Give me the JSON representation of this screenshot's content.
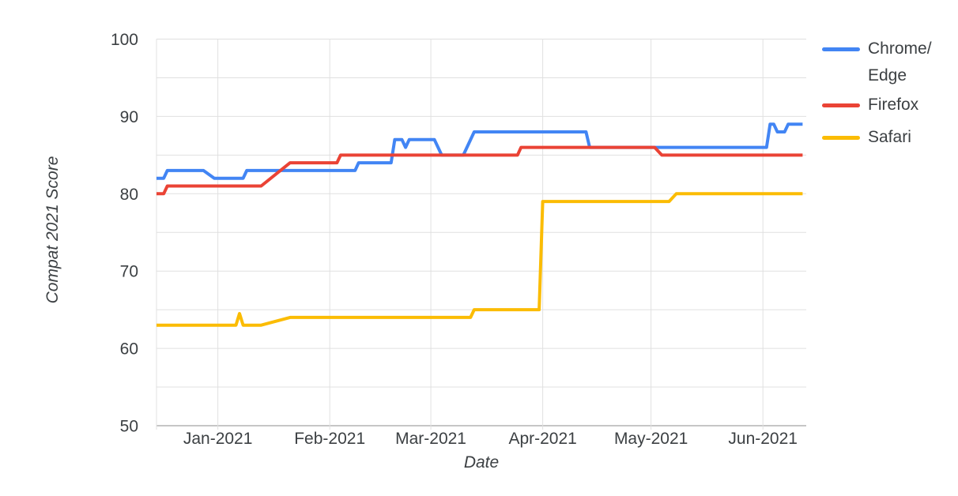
{
  "chart_data": {
    "type": "line",
    "title": "",
    "xlabel": "Date",
    "ylabel": "Compat 2021 Score",
    "x_range": [
      "2020-12-15",
      "2021-06-13"
    ],
    "ylim": [
      50,
      100
    ],
    "y_ticks": [
      50,
      60,
      70,
      80,
      90,
      100
    ],
    "y_grid_step": 5,
    "grid": true,
    "legend_position": "right",
    "x_tick_labels": [
      "Jan-2021",
      "Feb-2021",
      "Mar-2021",
      "Apr-2021",
      "May-2021",
      "Jun-2021"
    ],
    "x_tick_dates": [
      "2021-01-01",
      "2021-02-01",
      "2021-03-01",
      "2021-04-01",
      "2021-05-01",
      "2021-06-01"
    ],
    "series": [
      {
        "name": "Chrome/Edge",
        "color": "#4285F4",
        "points": [
          [
            "2020-12-15",
            82
          ],
          [
            "2020-12-17",
            82
          ],
          [
            "2020-12-18",
            83
          ],
          [
            "2020-12-28",
            83
          ],
          [
            "2020-12-31",
            82
          ],
          [
            "2021-01-08",
            82
          ],
          [
            "2021-01-09",
            83
          ],
          [
            "2021-02-08",
            83
          ],
          [
            "2021-02-09",
            84
          ],
          [
            "2021-02-18",
            84
          ],
          [
            "2021-02-19",
            87
          ],
          [
            "2021-02-21",
            87
          ],
          [
            "2021-02-22",
            86
          ],
          [
            "2021-02-23",
            87
          ],
          [
            "2021-03-02",
            87
          ],
          [
            "2021-03-04",
            85
          ],
          [
            "2021-03-10",
            85
          ],
          [
            "2021-03-13",
            88
          ],
          [
            "2021-04-13",
            88
          ],
          [
            "2021-04-14",
            86
          ],
          [
            "2021-06-02",
            86
          ],
          [
            "2021-06-03",
            89
          ],
          [
            "2021-06-04",
            89
          ],
          [
            "2021-06-05",
            88
          ],
          [
            "2021-06-07",
            88
          ],
          [
            "2021-06-08",
            89
          ],
          [
            "2021-06-12",
            89
          ]
        ]
      },
      {
        "name": "Firefox",
        "color": "#EA4335",
        "points": [
          [
            "2020-12-15",
            80
          ],
          [
            "2020-12-17",
            80
          ],
          [
            "2020-12-18",
            81
          ],
          [
            "2021-01-13",
            81
          ],
          [
            "2021-01-21",
            84
          ],
          [
            "2021-02-03",
            84
          ],
          [
            "2021-02-04",
            85
          ],
          [
            "2021-03-25",
            85
          ],
          [
            "2021-03-26",
            86
          ],
          [
            "2021-05-02",
            86
          ],
          [
            "2021-05-04",
            85
          ],
          [
            "2021-06-12",
            85
          ]
        ]
      },
      {
        "name": "Safari",
        "color": "#FBBC04",
        "points": [
          [
            "2020-12-15",
            63
          ],
          [
            "2021-01-06",
            63
          ],
          [
            "2021-01-07",
            64.5
          ],
          [
            "2021-01-08",
            63
          ],
          [
            "2021-01-13",
            63
          ],
          [
            "2021-01-21",
            64
          ],
          [
            "2021-03-12",
            64
          ],
          [
            "2021-03-13",
            65
          ],
          [
            "2021-03-31",
            65
          ],
          [
            "2021-04-01",
            79
          ],
          [
            "2021-05-06",
            79
          ],
          [
            "2021-05-08",
            80
          ],
          [
            "2021-06-12",
            80
          ]
        ]
      }
    ]
  },
  "legend": {
    "items": [
      {
        "label": "Chrome/Edge",
        "line1": "Chrome/",
        "line2": "Edge"
      },
      {
        "label": "Firefox",
        "line1": "Firefox",
        "line2": ""
      },
      {
        "label": "Safari",
        "line1": "Safari",
        "line2": ""
      }
    ]
  },
  "colors": {
    "tick_text": "#3c4043",
    "gridline": "#e0e0e0",
    "axis_line": "#b4b4b4",
    "background": "#ffffff"
  }
}
